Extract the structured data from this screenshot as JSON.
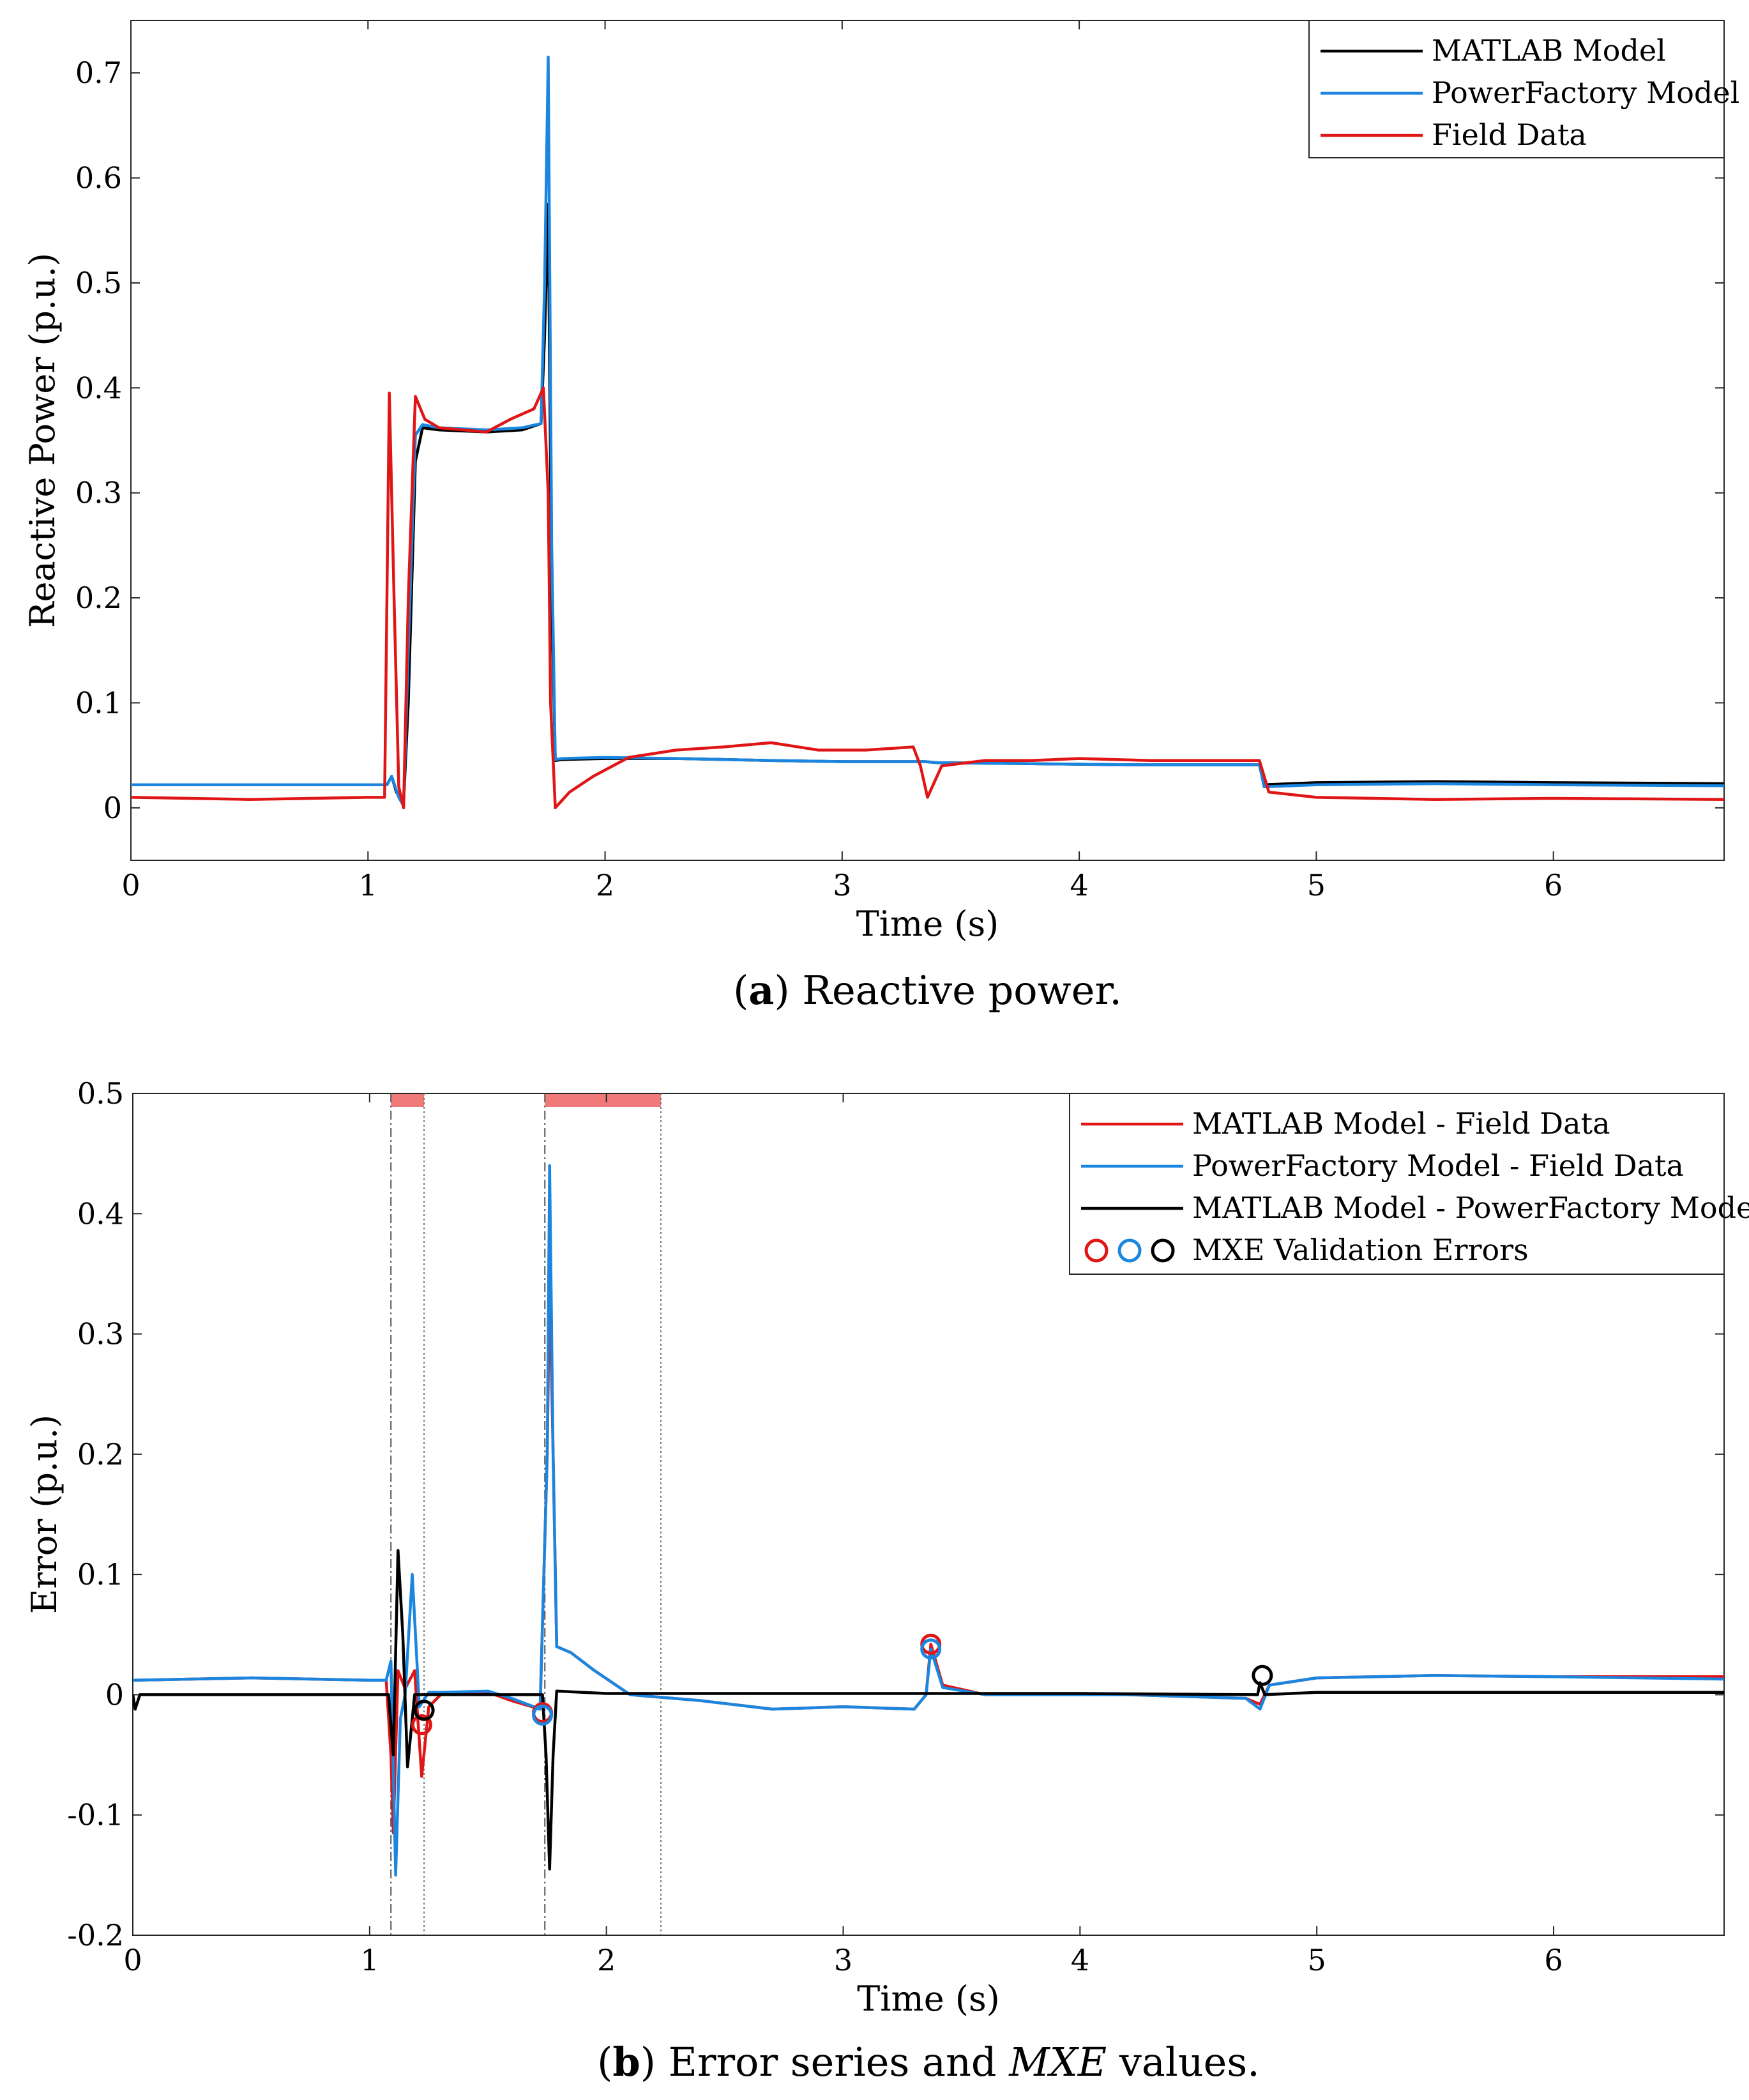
{
  "chart_data": [
    {
      "id": "panel-a",
      "type": "line",
      "caption": {
        "label": "a",
        "text": "Reactive power."
      },
      "xlabel": "Time (s)",
      "ylabel": "Reactive Power (p.u.)",
      "xlim": [
        0,
        6.72
      ],
      "ylim": [
        -0.05,
        0.75
      ],
      "xticks": [
        0,
        1,
        2,
        3,
        4,
        5,
        6
      ],
      "yticks": [
        0,
        0.1,
        0.2,
        0.3,
        0.4,
        0.5,
        0.6,
        0.7
      ],
      "ytick_labels": [
        "0",
        "0.1",
        "0.2",
        "0.3",
        "0.4",
        "0.5",
        "0.6",
        "0.7"
      ],
      "legend_position": "top-right",
      "series": [
        {
          "name": "MATLAB Model",
          "color": "#000000",
          "points": [
            [
              0,
              0.022
            ],
            [
              1.08,
              0.022
            ],
            [
              1.1,
              0.03
            ],
            [
              1.12,
              0.015
            ],
            [
              1.15,
              0.005
            ],
            [
              1.17,
              0.1
            ],
            [
              1.2,
              0.33
            ],
            [
              1.23,
              0.362
            ],
            [
              1.3,
              0.36
            ],
            [
              1.5,
              0.358
            ],
            [
              1.65,
              0.36
            ],
            [
              1.73,
              0.366
            ],
            [
              1.745,
              0.45
            ],
            [
              1.76,
              0.575
            ],
            [
              1.775,
              0.2
            ],
            [
              1.79,
              0.045
            ],
            [
              1.82,
              0.046
            ],
            [
              2.0,
              0.047
            ],
            [
              2.3,
              0.047
            ],
            [
              2.7,
              0.045
            ],
            [
              3.0,
              0.044
            ],
            [
              3.35,
              0.044
            ],
            [
              3.4,
              0.043
            ],
            [
              3.8,
              0.042
            ],
            [
              4.2,
              0.041
            ],
            [
              4.76,
              0.041
            ],
            [
              4.78,
              0.022
            ],
            [
              5.0,
              0.024
            ],
            [
              5.5,
              0.025
            ],
            [
              6.0,
              0.024
            ],
            [
              6.72,
              0.023
            ]
          ]
        },
        {
          "name": "PowerFactory Model",
          "color": "#1a86e0",
          "points": [
            [
              0,
              0.022
            ],
            [
              1.08,
              0.022
            ],
            [
              1.1,
              0.03
            ],
            [
              1.13,
              0.01
            ],
            [
              1.15,
              0.002
            ],
            [
              1.17,
              0.15
            ],
            [
              1.2,
              0.355
            ],
            [
              1.23,
              0.365
            ],
            [
              1.3,
              0.362
            ],
            [
              1.5,
              0.36
            ],
            [
              1.65,
              0.362
            ],
            [
              1.73,
              0.366
            ],
            [
              1.745,
              0.5
            ],
            [
              1.76,
              0.715
            ],
            [
              1.775,
              0.25
            ],
            [
              1.79,
              0.046
            ],
            [
              1.82,
              0.047
            ],
            [
              2.0,
              0.048
            ],
            [
              2.3,
              0.047
            ],
            [
              2.7,
              0.045
            ],
            [
              3.0,
              0.044
            ],
            [
              3.35,
              0.044
            ],
            [
              3.4,
              0.043
            ],
            [
              3.8,
              0.042
            ],
            [
              4.2,
              0.041
            ],
            [
              4.76,
              0.041
            ],
            [
              4.78,
              0.02
            ],
            [
              5.0,
              0.022
            ],
            [
              5.5,
              0.023
            ],
            [
              6.0,
              0.022
            ],
            [
              6.72,
              0.021
            ]
          ]
        },
        {
          "name": "Field Data",
          "color": "#e01515",
          "points": [
            [
              0,
              0.01
            ],
            [
              0.5,
              0.008
            ],
            [
              1.0,
              0.01
            ],
            [
              1.07,
              0.01
            ],
            [
              1.09,
              0.395
            ],
            [
              1.11,
              0.2
            ],
            [
              1.13,
              0.02
            ],
            [
              1.15,
              0.0
            ],
            [
              1.17,
              0.2
            ],
            [
              1.2,
              0.392
            ],
            [
              1.24,
              0.37
            ],
            [
              1.3,
              0.362
            ],
            [
              1.5,
              0.358
            ],
            [
              1.6,
              0.37
            ],
            [
              1.7,
              0.38
            ],
            [
              1.74,
              0.4
            ],
            [
              1.76,
              0.3
            ],
            [
              1.77,
              0.1
            ],
            [
              1.79,
              0.0
            ],
            [
              1.85,
              0.015
            ],
            [
              1.95,
              0.03
            ],
            [
              2.1,
              0.048
            ],
            [
              2.3,
              0.055
            ],
            [
              2.5,
              0.058
            ],
            [
              2.7,
              0.062
            ],
            [
              2.9,
              0.055
            ],
            [
              3.1,
              0.055
            ],
            [
              3.3,
              0.058
            ],
            [
              3.33,
              0.04
            ],
            [
              3.36,
              0.01
            ],
            [
              3.42,
              0.04
            ],
            [
              3.6,
              0.045
            ],
            [
              3.8,
              0.045
            ],
            [
              4.0,
              0.047
            ],
            [
              4.3,
              0.045
            ],
            [
              4.6,
              0.045
            ],
            [
              4.76,
              0.045
            ],
            [
              4.8,
              0.015
            ],
            [
              5.0,
              0.01
            ],
            [
              5.5,
              0.008
            ],
            [
              6.0,
              0.009
            ],
            [
              6.72,
              0.008
            ]
          ]
        }
      ]
    },
    {
      "id": "panel-b",
      "type": "line",
      "caption": {
        "label": "b",
        "text_before": "Error series and ",
        "text_italic": "MXE",
        "text_after": " values."
      },
      "xlabel": "Time (s)",
      "ylabel": "Error (p.u.)",
      "xlim": [
        0,
        6.72
      ],
      "ylim": [
        -0.2,
        0.5
      ],
      "xticks": [
        0,
        1,
        2,
        3,
        4,
        5,
        6
      ],
      "yticks": [
        -0.2,
        -0.1,
        0,
        0.1,
        0.2,
        0.3,
        0.4,
        0.5
      ],
      "ytick_labels": [
        "-0.2",
        "-0.1",
        "0",
        "0.1",
        "0.2",
        "0.3",
        "0.4",
        "0.5"
      ],
      "legend_position": "top-right",
      "event_windows": [
        [
          1.09,
          1.23
        ],
        [
          1.74,
          2.23
        ]
      ],
      "window_color": "#f07a7a",
      "series": [
        {
          "name": "MATLAB Model - Field Data",
          "color": "#e01515",
          "points": [
            [
              0,
              0.012
            ],
            [
              0.5,
              0.014
            ],
            [
              1.0,
              0.012
            ],
            [
              1.07,
              0.012
            ],
            [
              1.09,
              -0.05
            ],
            [
              1.1,
              -0.115
            ],
            [
              1.12,
              0.02
            ],
            [
              1.15,
              0.005
            ],
            [
              1.19,
              0.02
            ],
            [
              1.22,
              -0.068
            ],
            [
              1.25,
              -0.01
            ],
            [
              1.3,
              0.0
            ],
            [
              1.5,
              0.002
            ],
            [
              1.6,
              -0.005
            ],
            [
              1.72,
              -0.012
            ],
            [
              1.75,
              0.2
            ],
            [
              1.76,
              0.35
            ],
            [
              1.775,
              0.2
            ],
            [
              1.79,
              0.04
            ],
            [
              1.85,
              0.035
            ],
            [
              1.95,
              0.02
            ],
            [
              2.1,
              0.0
            ],
            [
              2.4,
              -0.005
            ],
            [
              2.7,
              -0.012
            ],
            [
              3.0,
              -0.01
            ],
            [
              3.3,
              -0.012
            ],
            [
              3.35,
              0.0
            ],
            [
              3.37,
              0.042
            ],
            [
              3.42,
              0.008
            ],
            [
              3.6,
              0.0
            ],
            [
              3.8,
              0.0
            ],
            [
              4.2,
              0.0
            ],
            [
              4.7,
              -0.003
            ],
            [
              4.76,
              -0.008
            ],
            [
              4.8,
              0.008
            ],
            [
              5.0,
              0.014
            ],
            [
              5.5,
              0.016
            ],
            [
              6.0,
              0.015
            ],
            [
              6.72,
              0.015
            ]
          ]
        },
        {
          "name": "PowerFactory Model - Field Data",
          "color": "#1a86e0",
          "points": [
            [
              0,
              0.012
            ],
            [
              0.5,
              0.014
            ],
            [
              1.0,
              0.012
            ],
            [
              1.07,
              0.012
            ],
            [
              1.09,
              0.028
            ],
            [
              1.11,
              -0.15
            ],
            [
              1.13,
              -0.02
            ],
            [
              1.15,
              0.0
            ],
            [
              1.18,
              0.1
            ],
            [
              1.21,
              -0.01
            ],
            [
              1.25,
              0.002
            ],
            [
              1.3,
              0.002
            ],
            [
              1.5,
              0.003
            ],
            [
              1.6,
              -0.003
            ],
            [
              1.72,
              -0.012
            ],
            [
              1.75,
              0.2
            ],
            [
              1.76,
              0.44
            ],
            [
              1.775,
              0.2
            ],
            [
              1.79,
              0.04
            ],
            [
              1.85,
              0.035
            ],
            [
              1.95,
              0.02
            ],
            [
              2.1,
              0.0
            ],
            [
              2.4,
              -0.005
            ],
            [
              2.7,
              -0.012
            ],
            [
              3.0,
              -0.01
            ],
            [
              3.3,
              -0.012
            ],
            [
              3.35,
              0.0
            ],
            [
              3.37,
              0.038
            ],
            [
              3.42,
              0.006
            ],
            [
              3.6,
              0.0
            ],
            [
              3.8,
              0.0
            ],
            [
              4.2,
              0.0
            ],
            [
              4.7,
              -0.003
            ],
            [
              4.76,
              -0.012
            ],
            [
              4.8,
              0.008
            ],
            [
              5.0,
              0.014
            ],
            [
              5.5,
              0.016
            ],
            [
              6.0,
              0.015
            ],
            [
              6.72,
              0.013
            ]
          ]
        },
        {
          "name": "MATLAB Model - PowerFactory Model",
          "color": "#000000",
          "points": [
            [
              0,
              0.0
            ],
            [
              0.01,
              -0.012
            ],
            [
              0.03,
              0.0
            ],
            [
              1.08,
              0.0
            ],
            [
              1.1,
              -0.05
            ],
            [
              1.12,
              0.12
            ],
            [
              1.14,
              0.05
            ],
            [
              1.16,
              -0.06
            ],
            [
              1.19,
              0.0
            ],
            [
              1.3,
              0.0
            ],
            [
              1.73,
              0.0
            ],
            [
              1.745,
              -0.05
            ],
            [
              1.76,
              -0.145
            ],
            [
              1.775,
              -0.05
            ],
            [
              1.79,
              0.003
            ],
            [
              2.0,
              0.001
            ],
            [
              3.0,
              0.001
            ],
            [
              4.0,
              0.001
            ],
            [
              4.75,
              0.0
            ],
            [
              4.76,
              0.01
            ],
            [
              4.78,
              0.0
            ],
            [
              5.0,
              0.002
            ],
            [
              6.0,
              0.002
            ],
            [
              6.72,
              0.002
            ]
          ]
        }
      ],
      "mxe_markers": [
        {
          "color": "#e01515",
          "x": 1.22,
          "y": -0.025
        },
        {
          "color": "#e01515",
          "x": 1.73,
          "y": -0.015
        },
        {
          "color": "#e01515",
          "x": 3.37,
          "y": 0.042
        },
        {
          "color": "#1a86e0",
          "x": 1.73,
          "y": -0.017
        },
        {
          "color": "#1a86e0",
          "x": 3.37,
          "y": 0.038
        },
        {
          "color": "#000000",
          "x": 1.23,
          "y": -0.013
        },
        {
          "color": "#000000",
          "x": 4.77,
          "y": 0.016
        }
      ],
      "marker_legend_label": "MXE Validation Errors",
      "marker_legend_colors": [
        "#e01515",
        "#1a86e0",
        "#000000"
      ]
    }
  ]
}
